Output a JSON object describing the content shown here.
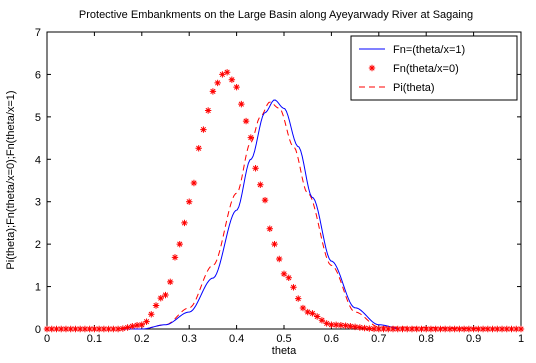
{
  "chart_data": {
    "type": "line",
    "title": "Protective Embankments on the Large Basin along Ayeyarwady River at Sagaing",
    "xlabel": "theta",
    "ylabel": "Pi(theta);Fn(theta/x=0);Fn(theta/x=1)",
    "xlim": [
      0,
      1
    ],
    "ylim": [
      0,
      7
    ],
    "x_ticks": [
      "0",
      "0.1",
      "0.2",
      "0.3",
      "0.4",
      "0.5",
      "0.6",
      "0.7",
      "0.8",
      "0.9",
      "1"
    ],
    "y_ticks": [
      "0",
      "1",
      "2",
      "3",
      "4",
      "5",
      "6",
      "7"
    ],
    "grid": false,
    "legend_position": "top-right",
    "series": [
      {
        "name": "Fn=(theta/x=1)",
        "style": "solid",
        "marker": "none",
        "color": "#0000ff",
        "x": [
          0,
          0.2,
          0.25,
          0.3,
          0.35,
          0.4,
          0.43,
          0.46,
          0.48,
          0.5,
          0.53,
          0.56,
          0.6,
          0.65,
          0.7,
          0.75,
          1
        ],
        "y": [
          0,
          0,
          0.1,
          0.4,
          1.2,
          2.8,
          4.0,
          5.1,
          5.4,
          5.2,
          4.3,
          3.1,
          1.6,
          0.5,
          0.1,
          0,
          0
        ]
      },
      {
        "name": "Fn(theta/x=0)",
        "style": "none",
        "marker": "*",
        "color": "#ff0000",
        "x": [
          0,
          0.15,
          0.2,
          0.25,
          0.28,
          0.3,
          0.33,
          0.35,
          0.37,
          0.38,
          0.4,
          0.42,
          0.45,
          0.48,
          0.5,
          0.55,
          0.6,
          0.7,
          1
        ],
        "y": [
          0,
          0,
          0.1,
          0.8,
          2.0,
          3.0,
          4.7,
          5.6,
          6.0,
          6.05,
          5.7,
          4.9,
          3.4,
          2.0,
          1.3,
          0.4,
          0.1,
          0,
          0
        ]
      },
      {
        "name": "Pi(theta)",
        "style": "dashed",
        "marker": "none",
        "color": "#ff0000",
        "x": [
          0,
          0.2,
          0.25,
          0.3,
          0.35,
          0.4,
          0.43,
          0.45,
          0.47,
          0.49,
          0.52,
          0.55,
          0.6,
          0.65,
          0.7,
          1
        ],
        "y": [
          0,
          0,
          0.1,
          0.5,
          1.5,
          3.2,
          4.4,
          5.0,
          5.35,
          5.2,
          4.3,
          3.2,
          1.5,
          0.4,
          0.05,
          0
        ]
      }
    ]
  }
}
